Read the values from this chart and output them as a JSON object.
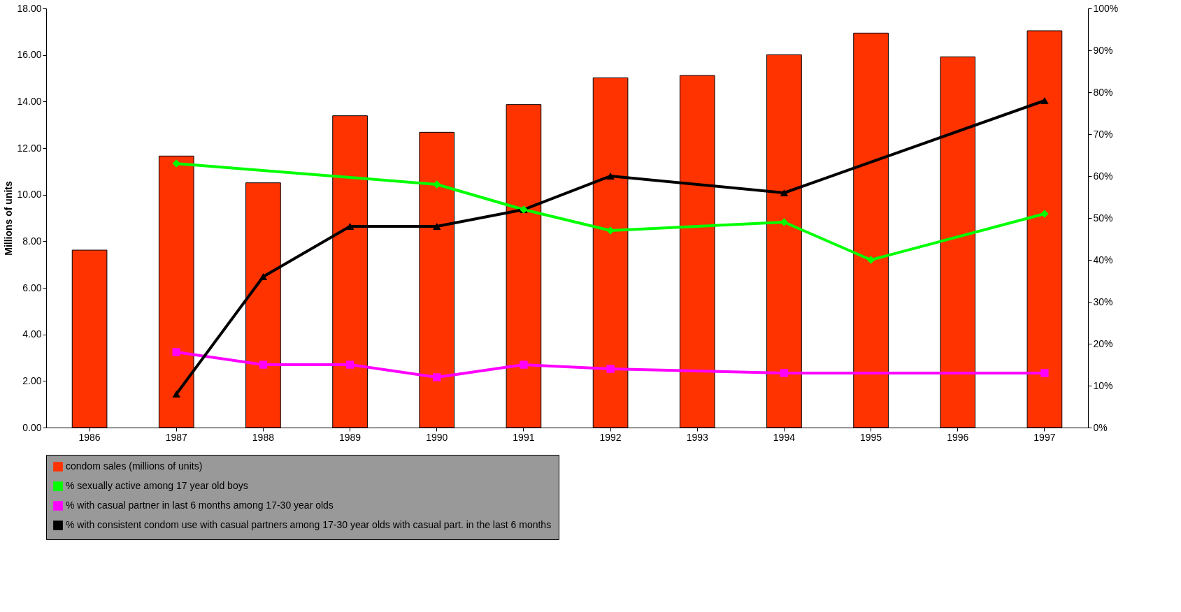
{
  "chart_data": {
    "type": "bar",
    "ylabel": "Millions of units",
    "categories": [
      "1986",
      "1987",
      "1988",
      "1989",
      "1990",
      "1991",
      "1992",
      "1993",
      "1994",
      "1995",
      "1996",
      "1997"
    ],
    "series": [
      {
        "name": "condom sales (millions of units)",
        "axis": "y",
        "color": "#ff3300",
        "values": [
          7.62,
          11.66,
          10.51,
          13.39,
          12.68,
          13.87,
          15.02,
          15.12,
          16.01,
          16.94,
          15.92,
          17.04
        ]
      },
      {
        "name": "% sexually active among 17 year old boys",
        "type": "line",
        "axis": "y2",
        "color": "#00ff00",
        "marker": "diamond",
        "values": [
          null,
          63,
          null,
          null,
          58,
          52,
          47,
          null,
          49,
          40,
          null,
          51
        ]
      },
      {
        "name": "% with casual partner in last 6 months among 17-30 year olds",
        "type": "line",
        "axis": "y2",
        "color": "#ff00ff",
        "marker": "square",
        "values": [
          null,
          18,
          15,
          15,
          12,
          15,
          14,
          null,
          13,
          null,
          null,
          13
        ]
      },
      {
        "name": "% with consistent condom use with casual partners among 17-30 year olds with casual part. in the last 6 months",
        "type": "line",
        "axis": "y2",
        "color": "#000000",
        "marker": "triangle",
        "values": [
          null,
          8,
          36,
          48,
          48,
          52,
          60,
          null,
          56,
          null,
          null,
          78
        ]
      }
    ],
    "ylim": [
      0,
      18
    ],
    "yticks": [
      {
        "value": 0,
        "label": "0.00"
      },
      {
        "value": 2,
        "label": "2.00"
      },
      {
        "value": 4,
        "label": "4.00"
      },
      {
        "value": 6,
        "label": "6.00"
      },
      {
        "value": 8,
        "label": "8.00"
      },
      {
        "value": 10,
        "label": "10.00"
      },
      {
        "value": 12,
        "label": "12.00"
      },
      {
        "value": 14,
        "label": "14.00"
      },
      {
        "value": 16,
        "label": "16.00"
      },
      {
        "value": 18,
        "label": "18.00"
      }
    ],
    "y2lim": [
      0,
      100
    ],
    "y2ticks": [
      {
        "value": 0,
        "label": "0%"
      },
      {
        "value": 10,
        "label": "10%"
      },
      {
        "value": 20,
        "label": "20%"
      },
      {
        "value": 30,
        "label": "30%"
      },
      {
        "value": 40,
        "label": "40%"
      },
      {
        "value": 50,
        "label": "50%"
      },
      {
        "value": 60,
        "label": "60%"
      },
      {
        "value": 70,
        "label": "70%"
      },
      {
        "value": 80,
        "label": "80%"
      },
      {
        "value": 90,
        "label": "90%"
      },
      {
        "value": 100,
        "label": "100%"
      }
    ],
    "grid": false,
    "legend": "bottom"
  }
}
